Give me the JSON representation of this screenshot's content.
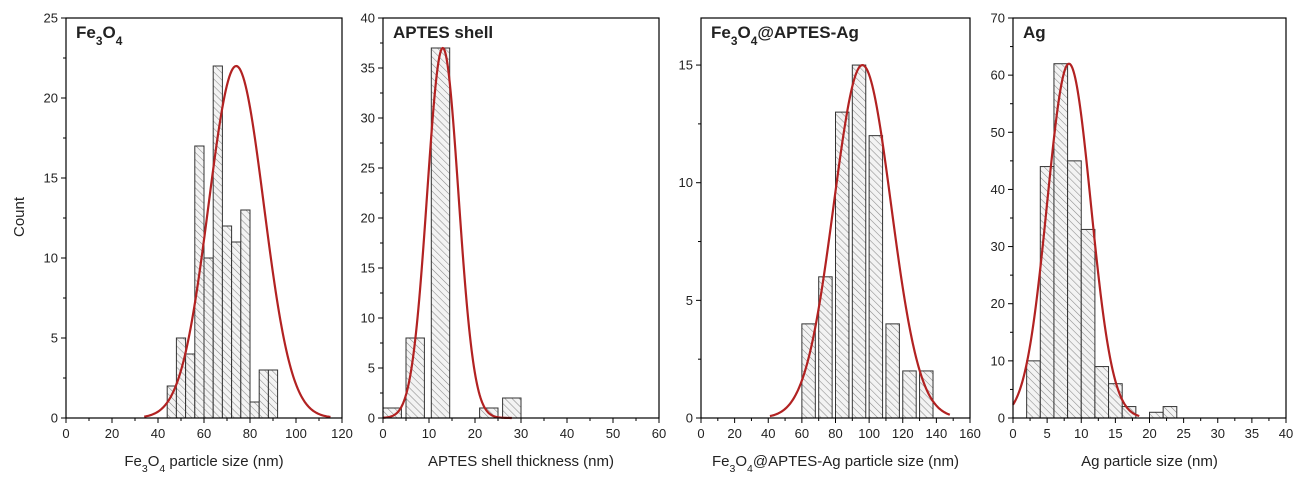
{
  "ylabel": "Count",
  "chart_data": [
    {
      "type": "bar",
      "title": "Fe3O4",
      "title_parts": [
        [
          "Fe",
          ""
        ],
        [
          "3",
          "sub"
        ],
        [
          "O",
          ""
        ],
        [
          "4",
          "sub"
        ]
      ],
      "xlabel": "Fe3O4 particle size (nm)",
      "xlabel_parts": [
        [
          "Fe",
          ""
        ],
        [
          "3",
          "sub"
        ],
        [
          "O",
          ""
        ],
        [
          "4",
          "sub"
        ],
        [
          " particle size (nm)",
          ""
        ]
      ],
      "ylabel": "Count",
      "xlim": [
        0,
        120
      ],
      "ylim": [
        0,
        25
      ],
      "xticks": [
        0,
        20,
        40,
        60,
        80,
        100,
        120
      ],
      "yticks": [
        0,
        5,
        10,
        15,
        20,
        25
      ],
      "bin_width": 4,
      "bars": [
        {
          "x": 46,
          "value": 2
        },
        {
          "x": 50,
          "value": 5
        },
        {
          "x": 54,
          "value": 4
        },
        {
          "x": 58,
          "value": 17
        },
        {
          "x": 62,
          "value": 10
        },
        {
          "x": 66,
          "value": 22
        },
        {
          "x": 70,
          "value": 12
        },
        {
          "x": 74,
          "value": 11
        },
        {
          "x": 78,
          "value": 13
        },
        {
          "x": 82,
          "value": 1
        },
        {
          "x": 86,
          "value": 3
        },
        {
          "x": 90,
          "value": 3
        }
      ],
      "fit": {
        "type": "gaussian",
        "mean": 74,
        "sigma": 12,
        "amplitude": 22,
        "range": [
          34,
          115
        ]
      }
    },
    {
      "type": "bar",
      "title": "APTES shell",
      "title_parts": [
        [
          "APTES shell",
          ""
        ]
      ],
      "xlabel": "APTES shell thickness (nm)",
      "xlabel_parts": [
        [
          "APTES shell thickness (nm)",
          ""
        ]
      ],
      "ylabel": "",
      "xlim": [
        0,
        60
      ],
      "ylim": [
        0,
        40
      ],
      "xticks": [
        0,
        10,
        20,
        30,
        40,
        50,
        60
      ],
      "yticks": [
        0,
        5,
        10,
        15,
        20,
        25,
        30,
        35,
        40
      ],
      "bin_width": 4,
      "bars": [
        {
          "x": 2,
          "value": 1
        },
        {
          "x": 7,
          "value": 8
        },
        {
          "x": 12.5,
          "value": 37
        },
        {
          "x": 18,
          "value": 0
        },
        {
          "x": 23,
          "value": 1
        },
        {
          "x": 28,
          "value": 2
        }
      ],
      "fit": {
        "type": "gaussian",
        "mean": 13,
        "sigma": 3.4,
        "amplitude": 37,
        "range": [
          0,
          28
        ]
      }
    },
    {
      "type": "bar",
      "title": "Fe3O4@APTES-Ag",
      "title_parts": [
        [
          "Fe",
          ""
        ],
        [
          "3",
          "sub"
        ],
        [
          "O",
          ""
        ],
        [
          "4",
          "sub"
        ],
        [
          "@APTES-Ag",
          ""
        ]
      ],
      "xlabel": "Fe3O4@APTES-Ag particle size (nm)",
      "xlabel_parts": [
        [
          "Fe",
          ""
        ],
        [
          "3",
          "sub"
        ],
        [
          "O",
          ""
        ],
        [
          "4",
          "sub"
        ],
        [
          "@APTES-Ag particle size (nm)",
          ""
        ]
      ],
      "ylabel": "",
      "xlim": [
        0,
        160
      ],
      "ylim": [
        0,
        17
      ],
      "xticks": [
        0,
        20,
        40,
        60,
        80,
        100,
        120,
        140,
        160
      ],
      "yticks": [
        0,
        5,
        10,
        15
      ],
      "bin_width": 8,
      "bars": [
        {
          "x": 64,
          "value": 4
        },
        {
          "x": 74,
          "value": 6
        },
        {
          "x": 84,
          "value": 13
        },
        {
          "x": 94,
          "value": 15
        },
        {
          "x": 104,
          "value": 12
        },
        {
          "x": 114,
          "value": 4
        },
        {
          "x": 124,
          "value": 2
        },
        {
          "x": 134,
          "value": 2
        }
      ],
      "fit": {
        "type": "gaussian",
        "mean": 96,
        "sigma": 17,
        "amplitude": 15,
        "range": [
          41,
          148
        ]
      }
    },
    {
      "type": "bar",
      "title": "Ag",
      "title_parts": [
        [
          "Ag",
          ""
        ]
      ],
      "xlabel": "Ag particle size (nm)",
      "xlabel_parts": [
        [
          "Ag particle size (nm)",
          ""
        ]
      ],
      "ylabel": "",
      "xlim": [
        0,
        40
      ],
      "ylim": [
        0,
        70
      ],
      "xticks": [
        0,
        5,
        10,
        15,
        20,
        25,
        30,
        35,
        40
      ],
      "yticks": [
        0,
        10,
        20,
        30,
        40,
        50,
        60,
        70
      ],
      "bin_width": 2,
      "bars": [
        {
          "x": 3,
          "value": 10
        },
        {
          "x": 5,
          "value": 44
        },
        {
          "x": 7,
          "value": 62
        },
        {
          "x": 9,
          "value": 45
        },
        {
          "x": 11,
          "value": 33
        },
        {
          "x": 13,
          "value": 9
        },
        {
          "x": 15,
          "value": 6
        },
        {
          "x": 17,
          "value": 2
        },
        {
          "x": 19,
          "value": 0
        },
        {
          "x": 21,
          "value": 1
        },
        {
          "x": 23,
          "value": 2
        }
      ],
      "fit": {
        "type": "gaussian",
        "mean": 8.2,
        "sigma": 3.2,
        "amplitude": 62,
        "range": [
          0,
          18.5
        ]
      }
    }
  ]
}
